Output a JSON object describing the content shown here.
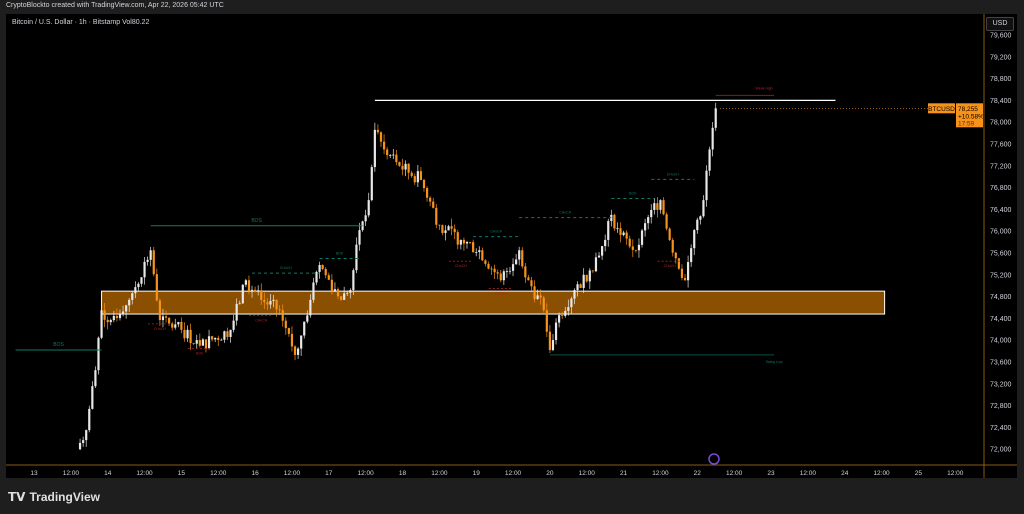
{
  "header": {
    "credit": "CryptoBlockto created with TradingView.com, Apr 22, 2026 05:42 UTC",
    "legend": "Bitcoin / U.S. Dollar · 1h · Bitstamp  Vol80.22",
    "currency": "USD"
  },
  "footer": {
    "brand": "TradingView",
    "logo_icon": "tradingview-logo-icon"
  },
  "colors": {
    "up": "#e8e8e8",
    "down": "#f7931a",
    "zone_fill": "#8a4f00",
    "zone_border": "#ffffff",
    "bos": "#0e7a68",
    "choch_bear": "#b22222",
    "price_tag": "#f7931a"
  },
  "chart_data": {
    "type": "candlestick",
    "symbol": "BTCUSD",
    "timeframe": "1h",
    "ylim": [
      71800,
      80000
    ],
    "y_ticks": [
      "79,600",
      "79,200",
      "78,800",
      "78,400",
      "78,000",
      "77,600",
      "77,200",
      "76,800",
      "76,400",
      "76,000",
      "75,600",
      "75,200",
      "74,800",
      "74,400",
      "74,000",
      "73,600",
      "73,200",
      "72,800",
      "72,400",
      "72,000"
    ],
    "x_ticks": [
      "13",
      "12:00",
      "14",
      "12:00",
      "15",
      "12:00",
      "16",
      "12:00",
      "17",
      "12:00",
      "18",
      "12:00",
      "19",
      "12:00",
      "20",
      "12:00",
      "21",
      "12:00",
      "22",
      "12:00",
      "23",
      "12:00",
      "24",
      "12:00",
      "25",
      "12:00"
    ],
    "price_path": [
      [
        "13 14:00",
        72000
      ],
      [
        "13 17:00",
        72350
      ],
      [
        "13 20:00",
        73450
      ],
      [
        "13 22:00",
        74550
      ],
      [
        "14 01:00",
        74370
      ],
      [
        "14 07:00",
        74740
      ],
      [
        "14 14:00",
        75650
      ],
      [
        "14 17:00",
        74370
      ],
      [
        "15 00:00",
        74190
      ],
      [
        "15 06:00",
        73900
      ],
      [
        "15 16:00",
        74190
      ],
      [
        "15 21:00",
        75100
      ],
      [
        "16 02:00",
        74740
      ],
      [
        "16 08:00",
        74550
      ],
      [
        "16 13:00",
        73730
      ],
      [
        "16 18:00",
        74740
      ],
      [
        "16 21:00",
        75380
      ],
      [
        "17 04:00",
        74740
      ],
      [
        "17 07:00",
        74920
      ],
      [
        "17 10:00",
        76020
      ],
      [
        "17 13:00",
        76570
      ],
      [
        "17 15:00",
        77860
      ],
      [
        "17 18:00",
        77500
      ],
      [
        "17 23:00",
        77200
      ],
      [
        "18 06:00",
        76940
      ],
      [
        "18 12:00",
        76110
      ],
      [
        "18 19:00",
        75840
      ],
      [
        "19 01:00",
        75650
      ],
      [
        "19 08:00",
        75100
      ],
      [
        "19 14:00",
        75650
      ],
      [
        "19 17:00",
        75100
      ],
      [
        "19 22:00",
        74550
      ],
      [
        "20 00:00",
        73820
      ],
      [
        "20 03:00",
        74460
      ],
      [
        "20 08:00",
        74920
      ],
      [
        "20 13:00",
        75280
      ],
      [
        "20 18:00",
        75840
      ],
      [
        "20 20:00",
        76300
      ],
      [
        "20 23:00",
        75930
      ],
      [
        "21 04:00",
        75650
      ],
      [
        "21 09:00",
        76390
      ],
      [
        "21 12:00",
        76570
      ],
      [
        "21 15:00",
        75840
      ],
      [
        "21 20:00",
        75100
      ],
      [
        "21 23:00",
        76020
      ],
      [
        "22 02:00",
        76570
      ],
      [
        "22 04:00",
        77500
      ],
      [
        "22 06:00",
        78255
      ]
    ],
    "last_price": {
      "price": "78,255",
      "change": "+10.58%",
      "countdown": "17:59",
      "label": "BTCUSD"
    },
    "zone": {
      "top": 74900,
      "bottom": 74480,
      "start": "13 22:00",
      "end": "24 13:00"
    },
    "levels": [
      {
        "label": "BOS",
        "price": 73820,
        "start": "12 18:00",
        "end": "13 22:00",
        "style": "solid",
        "kind": "bos"
      },
      {
        "label": "BOS",
        "price": 76100,
        "start": "14 14:00",
        "end": "17 11:00",
        "style": "solid",
        "kind": "bos"
      },
      {
        "label": "CHoCH",
        "price": 75230,
        "start": "15 23:00",
        "end": "16 21:00",
        "style": "dashed",
        "kind": "bos"
      },
      {
        "label": "BOS",
        "price": 75500,
        "start": "16 21:00",
        "end": "17 10:00",
        "style": "dashed",
        "kind": "bos"
      },
      {
        "label": "CHoCH",
        "price": 75900,
        "start": "18 23:00",
        "end": "19 14:00",
        "style": "dashed",
        "kind": "bos"
      },
      {
        "label": "CHoCH",
        "price": 76250,
        "start": "19 14:00",
        "end": "20 20:00",
        "style": "dashed",
        "kind": "bos"
      },
      {
        "label": "BOS",
        "price": 76600,
        "start": "20 20:00",
        "end": "21 10:00",
        "style": "dashed",
        "kind": "bos"
      },
      {
        "label": "CHoCH",
        "price": 76950,
        "start": "21 09:00",
        "end": "21 23:00",
        "style": "dashed",
        "kind": "bos"
      },
      {
        "label": "Weak High",
        "price": 78400,
        "start": "17 15:00",
        "end": "23 21:00",
        "style": "solid",
        "kind": "weak"
      },
      {
        "label": "Swing Low",
        "price": 73730,
        "start": "20 00:00",
        "end": "23 01:00",
        "style": "solid",
        "kind": "swing"
      }
    ],
    "bear_marks": [
      [
        "14 17:00",
        74300,
        "CHoCH"
      ],
      [
        "15 06:00",
        73850,
        "BOS"
      ],
      [
        "16 02:00",
        74450,
        "CHoCH"
      ],
      [
        "18 19:00",
        75450,
        "CHoCH"
      ],
      [
        "19 08:00",
        74950,
        "CHoCH"
      ],
      [
        "21 15:00",
        75450,
        "CHoCH"
      ]
    ]
  }
}
